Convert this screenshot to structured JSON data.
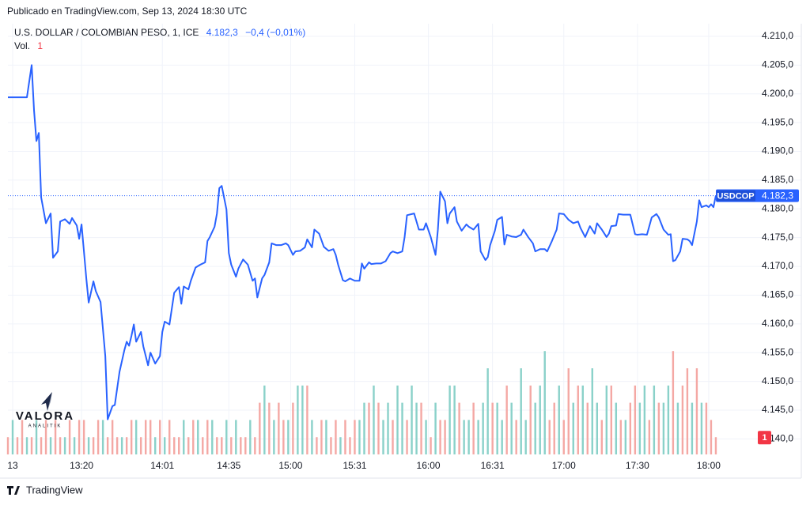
{
  "chart_data": {
    "type": "line",
    "subtitle": "Publicado en TradingView.com, Sep 13, 2024 18:30 UTC",
    "title": "U.S. DOLLAR / COLOMBIAN PESO, 1, ICE",
    "last_price": {
      "value": 4182.3,
      "label": "4.182,3"
    },
    "change_label": "−0,4 (−0,01%)",
    "grid": true,
    "series": [
      {
        "name": "USDCOP",
        "color": "#2962ff",
        "x": [
          0,
          8,
          10,
          11,
          12,
          13,
          14,
          16,
          18,
          19,
          21,
          22,
          24,
          26,
          27,
          29,
          30,
          31,
          33,
          34,
          36,
          37,
          39,
          41,
          42,
          44,
          45,
          47,
          49,
          50,
          51,
          52,
          53,
          54,
          56,
          57,
          59,
          60,
          62,
          64,
          65,
          66,
          68,
          70,
          72,
          73,
          74,
          76,
          77,
          79,
          81,
          83,
          84,
          85,
          87,
          88,
          89,
          90,
          92,
          93,
          94,
          96,
          97,
          99,
          101,
          103,
          104,
          105,
          107,
          108,
          110,
          111,
          113,
          115,
          117,
          118,
          120,
          121,
          123,
          125,
          126,
          128,
          129,
          131,
          133,
          135,
          137,
          138,
          139,
          141,
          142,
          144,
          146,
          148,
          149,
          150,
          152,
          153,
          155,
          157,
          159,
          161,
          162,
          164,
          166,
          167,
          168,
          170,
          171,
          173,
          175,
          176,
          178,
          180,
          181,
          182,
          184,
          185,
          186,
          188,
          189,
          191,
          193,
          194,
          196,
          198,
          199,
          201,
          202,
          203,
          205,
          206,
          208,
          209,
          210,
          212,
          214,
          216,
          217,
          219,
          221,
          222,
          224,
          226,
          227,
          229,
          231,
          232,
          234,
          236,
          238,
          240,
          241,
          243,
          245,
          247,
          248,
          250,
          252,
          253,
          254,
          256,
          257,
          259,
          261,
          262,
          264,
          265,
          267,
          269,
          271,
          273,
          274,
          276,
          278,
          279,
          280,
          281,
          283,
          284,
          286,
          287,
          288,
          290,
          291,
          292,
          294,
          295,
          296,
          297,
          298
        ],
        "values": [
          4199.4,
          4199.4,
          4205.0,
          4197.1,
          4191.8,
          4193.2,
          4182.0,
          4177.5,
          4179.2,
          4171.5,
          4172.6,
          4177.8,
          4178.2,
          4177.4,
          4178.4,
          4177.1,
          4174.8,
          4177.3,
          4167.9,
          4163.7,
          4167.4,
          4165.7,
          4163.8,
          4154.4,
          4143.4,
          4145.7,
          4145.9,
          4151.7,
          4155.4,
          4156.9,
          4156.2,
          4157.9,
          4159.9,
          4156.9,
          4158.6,
          4156.1,
          4152.8,
          4155.0,
          4153.1,
          4154.4,
          4158.6,
          4160.4,
          4159.9,
          4165.4,
          4166.4,
          4163.5,
          4166.5,
          4166.0,
          4167.5,
          4169.8,
          4170.3,
          4170.7,
          4174.4,
          4175.1,
          4176.9,
          4179.2,
          4183.6,
          4184.0,
          4179.9,
          4172.3,
          4170.3,
          4168.2,
          4169.6,
          4171.2,
          4170.3,
          4167.5,
          4167.9,
          4164.6,
          4167.9,
          4168.5,
          4170.7,
          4174.0,
          4173.7,
          4173.7,
          4174.0,
          4173.7,
          4172.0,
          4172.6,
          4172.7,
          4173.3,
          4174.7,
          4173.3,
          4176.4,
          4175.7,
          4173.4,
          4172.7,
          4173.0,
          4172.0,
          4170.3,
          4167.6,
          4167.4,
          4167.9,
          4167.5,
          4167.5,
          4170.5,
          4169.6,
          4170.7,
          4170.4,
          4170.5,
          4170.5,
          4170.9,
          4172.3,
          4172.6,
          4172.3,
          4172.6,
          4175.1,
          4178.9,
          4179.1,
          4179.2,
          4176.4,
          4176.4,
          4177.5,
          4175.1,
          4172.0,
          4176.4,
          4183.0,
          4181.3,
          4177.5,
          4179.2,
          4180.3,
          4177.8,
          4176.2,
          4177.3,
          4176.9,
          4176.4,
          4177.4,
          4172.6,
          4171.1,
          4171.6,
          4173.7,
          4176.2,
          4178.1,
          4178.6,
          4173.8,
          4175.5,
          4175.2,
          4175.1,
          4175.5,
          4176.4,
          4175.1,
          4174.0,
          4172.6,
          4173.0,
          4173.0,
          4172.6,
          4174.4,
          4176.4,
          4179.2,
          4179.1,
          4178.1,
          4177.5,
          4177.8,
          4176.7,
          4175.1,
          4177.0,
          4175.7,
          4177.5,
          4176.4,
          4175.1,
          4175.7,
          4177.0,
          4177.1,
          4179.1,
          4179.0,
          4179.0,
          4179.0,
          4175.6,
          4175.5,
          4175.6,
          4175.5,
          4178.5,
          4179.1,
          4178.5,
          4176.4,
          4175.5,
          4175.6,
          4170.9,
          4171.1,
          4172.6,
          4174.8,
          4174.7,
          4174.4,
          4173.7,
          4177.8,
          4181.5,
          4180.3,
          4180.6,
          4180.3,
          4180.8,
          4180.3,
          4182.3
        ]
      }
    ],
    "volume": {
      "name": "Vol.",
      "last": 1,
      "last_color": "#f23645",
      "ylim": [
        0,
        25
      ],
      "x": [
        0,
        2,
        4,
        6,
        8,
        10,
        12,
        14,
        16,
        18,
        20,
        22,
        24,
        26,
        28,
        30,
        32,
        34,
        36,
        38,
        40,
        42,
        44,
        46,
        48,
        50,
        52,
        54,
        56,
        58,
        60,
        62,
        64,
        66,
        68,
        70,
        72,
        74,
        76,
        78,
        80,
        82,
        84,
        86,
        88,
        90,
        92,
        94,
        96,
        98,
        100,
        102,
        104,
        106,
        108,
        110,
        112,
        114,
        116,
        118,
        120,
        122,
        124,
        126,
        128,
        130,
        132,
        134,
        136,
        138,
        140,
        142,
        144,
        146,
        148,
        150,
        152,
        154,
        156,
        158,
        160,
        162,
        164,
        166,
        168,
        170,
        172,
        174,
        176,
        178,
        180,
        182,
        184,
        186,
        188,
        190,
        192,
        194,
        196,
        198,
        200,
        202,
        204,
        206,
        208,
        210,
        212,
        214,
        216,
        218,
        220,
        222,
        224,
        226,
        228,
        230,
        232,
        234,
        236,
        238,
        240,
        242,
        244,
        246,
        248,
        250,
        252,
        254,
        256,
        258,
        260,
        262,
        264,
        266,
        268,
        270,
        272,
        274,
        276,
        278,
        280,
        282,
        284,
        286,
        288,
        290,
        292,
        294,
        296,
        298
      ],
      "values": [
        1,
        2,
        1,
        2,
        1,
        1,
        2,
        1,
        2,
        1,
        2,
        1,
        1,
        2,
        1,
        2,
        2,
        1,
        1,
        2,
        2,
        1,
        2,
        1,
        1,
        1,
        2,
        2,
        1,
        2,
        2,
        1,
        2,
        1,
        2,
        1,
        1,
        2,
        1,
        2,
        2,
        1,
        2,
        2,
        1,
        1,
        2,
        1,
        2,
        1,
        1,
        2,
        1,
        3,
        4,
        3,
        2,
        3,
        2,
        2,
        3,
        4,
        4,
        4,
        2,
        1,
        2,
        2,
        1,
        2,
        1,
        2,
        1,
        2,
        2,
        3,
        3,
        4,
        3,
        2,
        3,
        2,
        4,
        3,
        2,
        4,
        3,
        3,
        2,
        1,
        3,
        2,
        2,
        4,
        4,
        3,
        2,
        2,
        3,
        2,
        3,
        5,
        3,
        3,
        2,
        4,
        3,
        2,
        5,
        2,
        4,
        3,
        4,
        6,
        2,
        3,
        4,
        2,
        5,
        3,
        4,
        4,
        3,
        5,
        3,
        2,
        4,
        4,
        3,
        2,
        2,
        3,
        4,
        3,
        4,
        2,
        4,
        3,
        3,
        4,
        6,
        3,
        4,
        5,
        3,
        5,
        3,
        3,
        2,
        1
      ],
      "colors": [
        "#f4a8a4",
        "#8ad1c9",
        "#f4a8a4",
        "#f4a8a4",
        "#8ad1c9",
        "#f4a8a4",
        "#8ad1c9",
        "#f4a8a4",
        "#f4a8a4",
        "#8ad1c9",
        "#f4a8a4",
        "#f4a8a4",
        "#8ad1c9",
        "#f4a8a4",
        "#8ad1c9",
        "#f4a8a4",
        "#f4a8a4",
        "#8ad1c9",
        "#f4a8a4",
        "#f4a8a4",
        "#8ad1c9",
        "#f4a8a4",
        "#f4a8a4",
        "#f4a8a4",
        "#8ad1c9",
        "#f4a8a4",
        "#f4a8a4",
        "#8ad1c9",
        "#f4a8a4",
        "#f4a8a4",
        "#f4a8a4",
        "#8ad1c9",
        "#f4a8a4",
        "#8ad1c9",
        "#f4a8a4",
        "#f4a8a4",
        "#f4a8a4",
        "#8ad1c9",
        "#f4a8a4",
        "#f4a8a4",
        "#8ad1c9",
        "#f4a8a4",
        "#f4a8a4",
        "#8ad1c9",
        "#f4a8a4",
        "#f4a8a4",
        "#8ad1c9",
        "#f4a8a4",
        "#8ad1c9",
        "#f4a8a4",
        "#f4a8a4",
        "#8ad1c9",
        "#f4a8a4",
        "#f4a8a4",
        "#8ad1c9",
        "#f4a8a4",
        "#8ad1c9",
        "#f4a8a4",
        "#f4a8a4",
        "#8ad1c9",
        "#f4a8a4",
        "#8ad1c9",
        "#8ad1c9",
        "#f4a8a4",
        "#8ad1c9",
        "#f4a8a4",
        "#f4a8a4",
        "#8ad1c9",
        "#f4a8a4",
        "#f4a8a4",
        "#8ad1c9",
        "#f4a8a4",
        "#f4a8a4",
        "#f4a8a4",
        "#8ad1c9",
        "#8ad1c9",
        "#f4a8a4",
        "#8ad1c9",
        "#f4a8a4",
        "#8ad1c9",
        "#8ad1c9",
        "#f4a8a4",
        "#8ad1c9",
        "#8ad1c9",
        "#f4a8a4",
        "#8ad1c9",
        "#8ad1c9",
        "#f4a8a4",
        "#8ad1c9",
        "#f4a8a4",
        "#8ad1c9",
        "#f4a8a4",
        "#f4a8a4",
        "#8ad1c9",
        "#8ad1c9",
        "#f4a8a4",
        "#8ad1c9",
        "#8ad1c9",
        "#f4a8a4",
        "#8ad1c9",
        "#8ad1c9",
        "#8ad1c9",
        "#f4a8a4",
        "#8ad1c9",
        "#8ad1c9",
        "#f4a8a4",
        "#8ad1c9",
        "#f4a8a4",
        "#8ad1c9",
        "#8ad1c9",
        "#f4a8a4",
        "#8ad1c9",
        "#8ad1c9",
        "#8ad1c9",
        "#f4a8a4",
        "#f4a8a4",
        "#8ad1c9",
        "#f4a8a4",
        "#f4a8a4",
        "#8ad1c9",
        "#f4a8a4",
        "#8ad1c9",
        "#f4a8a4",
        "#8ad1c9",
        "#8ad1c9",
        "#f4a8a4",
        "#8ad1c9",
        "#f4a8a4",
        "#8ad1c9",
        "#f4a8a4",
        "#8ad1c9",
        "#f4a8a4",
        "#f4a8a4",
        "#8ad1c9",
        "#8ad1c9",
        "#f4a8a4",
        "#8ad1c9",
        "#f4a8a4",
        "#8ad1c9",
        "#8ad1c9",
        "#f4a8a4",
        "#8ad1c9",
        "#f4a8a4",
        "#f4a8a4",
        "#8ad1c9",
        "#f4a8a4",
        "#8ad1c9",
        "#f4a8a4",
        "#f4a8a4",
        "#f4a8a4"
      ]
    },
    "xlim": [
      0,
      313
    ],
    "xticks": [
      {
        "value": 2,
        "label": "13"
      },
      {
        "value": 31,
        "label": "13:20"
      },
      {
        "value": 65,
        "label": "14:01"
      },
      {
        "value": 93,
        "label": "14:35"
      },
      {
        "value": 119,
        "label": "15:00"
      },
      {
        "value": 146,
        "label": "15:31"
      },
      {
        "value": 177,
        "label": "16:00"
      },
      {
        "value": 204,
        "label": "16:31"
      },
      {
        "value": 234,
        "label": "17:00"
      },
      {
        "value": 265,
        "label": "17:30"
      },
      {
        "value": 295,
        "label": "18:00"
      }
    ],
    "ylim": [
      4137.3,
      4212.2
    ],
    "yticks": [
      {
        "value": 4140,
        "label": "4.140,0"
      },
      {
        "value": 4145,
        "label": "4.145,0"
      },
      {
        "value": 4150,
        "label": "4.150,0"
      },
      {
        "value": 4155,
        "label": "4.155,0"
      },
      {
        "value": 4160,
        "label": "4.160,0"
      },
      {
        "value": 4165,
        "label": "4.165,0"
      },
      {
        "value": 4170,
        "label": "4.170,0"
      },
      {
        "value": 4175,
        "label": "4.175,0"
      },
      {
        "value": 4180,
        "label": "4.180,0"
      },
      {
        "value": 4185,
        "label": "4.185,0"
      },
      {
        "value": 4190,
        "label": "4.190,0"
      },
      {
        "value": 4195,
        "label": "4.195,0"
      },
      {
        "value": 4200,
        "label": "4.200,0"
      },
      {
        "value": 4205,
        "label": "4.205,0"
      },
      {
        "value": 4210,
        "label": "4.210,0"
      }
    ]
  },
  "watermark": {
    "name": "VALORA",
    "tagline": "ANALITIK"
  },
  "footer": "TradingView"
}
